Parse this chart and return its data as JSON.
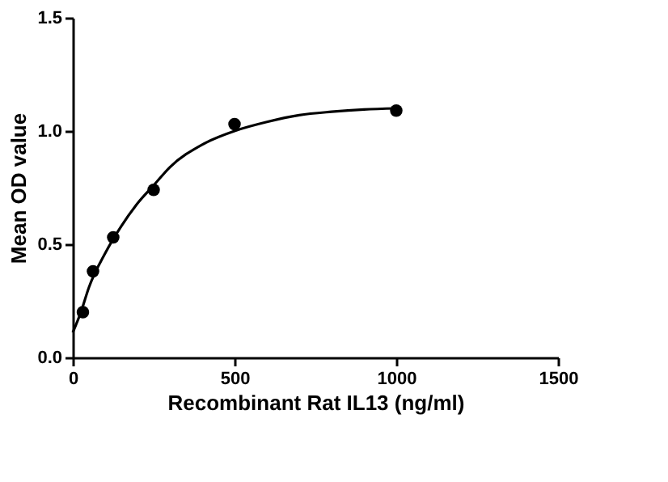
{
  "chart_data": {
    "type": "scatter",
    "xlabel": "Recombinant Rat IL13 (ng/ml)",
    "ylabel": "Mean OD value",
    "xlim": [
      0,
      1500
    ],
    "xticks": [
      0,
      500,
      1000,
      1500
    ],
    "ylim": [
      0,
      1.5
    ],
    "yticks": [
      {
        "value": 0,
        "label": "0.0"
      },
      0.5,
      {
        "value": 1,
        "label": "1.0"
      },
      1.5
    ],
    "grid": false,
    "series": [
      {
        "color": "#000000",
        "marker": "circle",
        "x": [
          31.25,
          62.5,
          125,
          250,
          500,
          1000
        ],
        "values": [
          0.2,
          0.38,
          0.53,
          0.74,
          1.03,
          1.09
        ]
      },
      {
        "type": "line",
        "color": "#000000",
        "marker": "none",
        "line_style": "solid",
        "x": [
          0,
          25,
          50,
          100,
          150,
          200,
          250,
          300,
          400,
          500,
          600,
          700,
          800,
          900,
          1000
        ],
        "values": [
          0.11,
          0.2,
          0.31,
          0.46,
          0.58,
          0.68,
          0.76,
          0.84,
          0.94,
          1.0,
          1.04,
          1.07,
          1.085,
          1.095,
          1.1
        ]
      }
    ]
  }
}
